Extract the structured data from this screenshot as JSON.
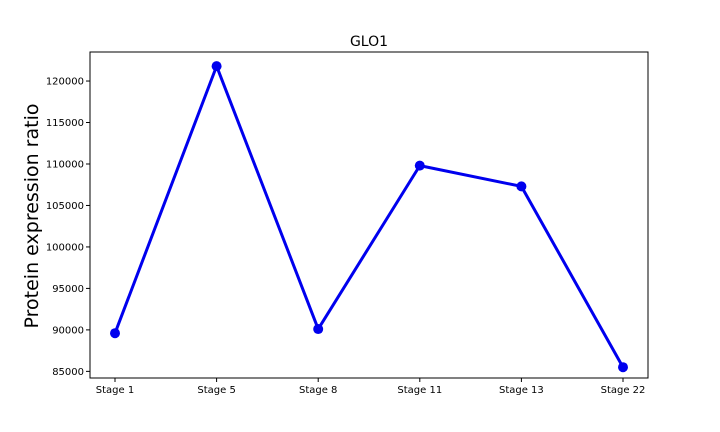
{
  "chart_data": {
    "type": "line",
    "title": "GLO1",
    "xlabel": "",
    "ylabel": "Protein expression ratio",
    "categories": [
      "Stage 1",
      "Stage 5",
      "Stage 8",
      "Stage 11",
      "Stage 13",
      "Stage 22"
    ],
    "series": [
      {
        "values": [
          89600,
          121800,
          90100,
          109800,
          107300,
          85500
        ],
        "color": "#0000ee",
        "marker": "circle"
      }
    ],
    "ylim": [
      84200,
      123500
    ],
    "yticks": [
      85000,
      90000,
      95000,
      100000,
      105000,
      110000,
      115000,
      120000
    ],
    "grid": false,
    "legend": "none"
  }
}
